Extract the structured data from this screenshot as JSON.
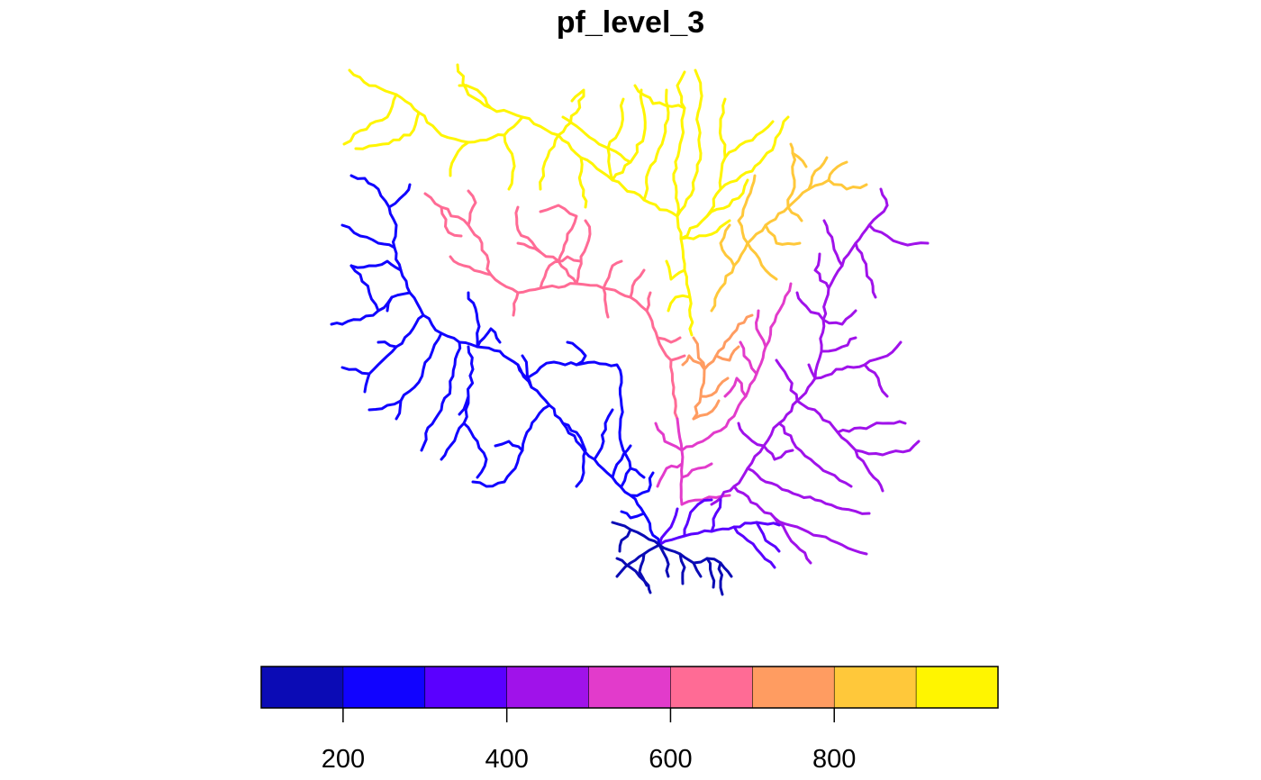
{
  "title": "pf_level_3",
  "colorbar": {
    "min": 100,
    "max": 1000,
    "bin_width": 100,
    "colors": [
      "#0B0BB5",
      "#1103FF",
      "#5A00FF",
      "#A012EA",
      "#E23BCB",
      "#FF6B95",
      "#FF9C61",
      "#FFC83A",
      "#FFF500"
    ],
    "ticks": [
      200,
      400,
      600,
      800
    ],
    "tick_labels": [
      "200",
      "400",
      "600",
      "800"
    ]
  },
  "river_network": {
    "outlet_color": "#0B0BB5",
    "stroke_colors": {
      "level_200": "#0B0BB5",
      "level_300": "#1103FF",
      "level_400": "#5A00FF",
      "level_500": "#A012EA",
      "level_600": "#E23BCB",
      "level_700": "#FF6B95",
      "level_800": "#FF9C61",
      "level_900": "#FFC83A",
      "level_1000": "#FFF500"
    }
  }
}
